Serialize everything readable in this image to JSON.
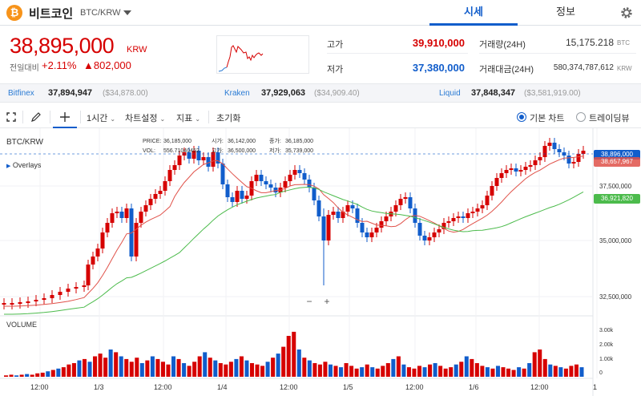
{
  "header": {
    "coin_symbol_icon": "₿",
    "coin_name": "비트코인",
    "pair": "BTC/KRW",
    "tabs": [
      "시세",
      "정보"
    ]
  },
  "summary": {
    "price": "38,895,000",
    "unit": "KRW",
    "change_label": "전일대비",
    "change_rate": "+2.11%",
    "change_amount": "▲802,000",
    "high_label": "고가",
    "high_value": "39,910,000",
    "low_label": "저가",
    "low_value": "37,380,000",
    "volume_label": "거래량(24H)",
    "volume_value": "15,175.218",
    "volume_unit": "BTC",
    "amount_label": "거래대금(24H)",
    "amount_value": "580,374,787,612",
    "amount_unit": "KRW"
  },
  "exchanges": [
    {
      "name": "Bitfinex",
      "price": "37,894,947",
      "usd": "($34,878.00)"
    },
    {
      "name": "Kraken",
      "price": "37,929,063",
      "usd": "($34,909.40)"
    },
    {
      "name": "Liquid",
      "price": "37,848,347",
      "usd": "($3,581,919.00)"
    }
  ],
  "toolbar": {
    "interval": "1시간",
    "chart_settings": "차트설정",
    "indicators": "지표",
    "reset": "초기화",
    "basic_chart": "기본 차트",
    "tradingview": "트레이딩뷰"
  },
  "chart": {
    "pair_label": "BTC/KRW",
    "overlays_label": "Overlays",
    "volume_label": "VOLUME",
    "info": {
      "price_label": "PRICE:",
      "price": "36,185,000",
      "open_label": "시가:",
      "open": "36,142,000",
      "close_label": "종가:",
      "close": "36,185,000",
      "vol_label": "VOL:",
      "vol": "556.71040452",
      "high_label": "고가:",
      "high": "36,500,000",
      "low_label": "저가:",
      "low": "35,739,000"
    },
    "zoom_out": "−",
    "zoom_in": "+",
    "y_ticks": [
      "37,500,000",
      "35,000,000",
      "32,500,000"
    ],
    "v_ticks": [
      "3.00k",
      "2.00k",
      "1.00k",
      "0"
    ],
    "x_ticks": [
      "12:00",
      "1/3",
      "12:00",
      "1/4",
      "12:00",
      "1/5",
      "12:00",
      "1/6",
      "12:00",
      "1"
    ],
    "tag_last": "38,896,000",
    "tag_ma_short": "38,657,967",
    "tag_ma_long": "36,921,820"
  },
  "colors": {
    "up": "#d60000",
    "down": "#115dcb",
    "accent": "#115dcb",
    "coin": "#f7931a",
    "ma_short": "#e0524a",
    "ma_long": "#4cbb4c"
  }
}
